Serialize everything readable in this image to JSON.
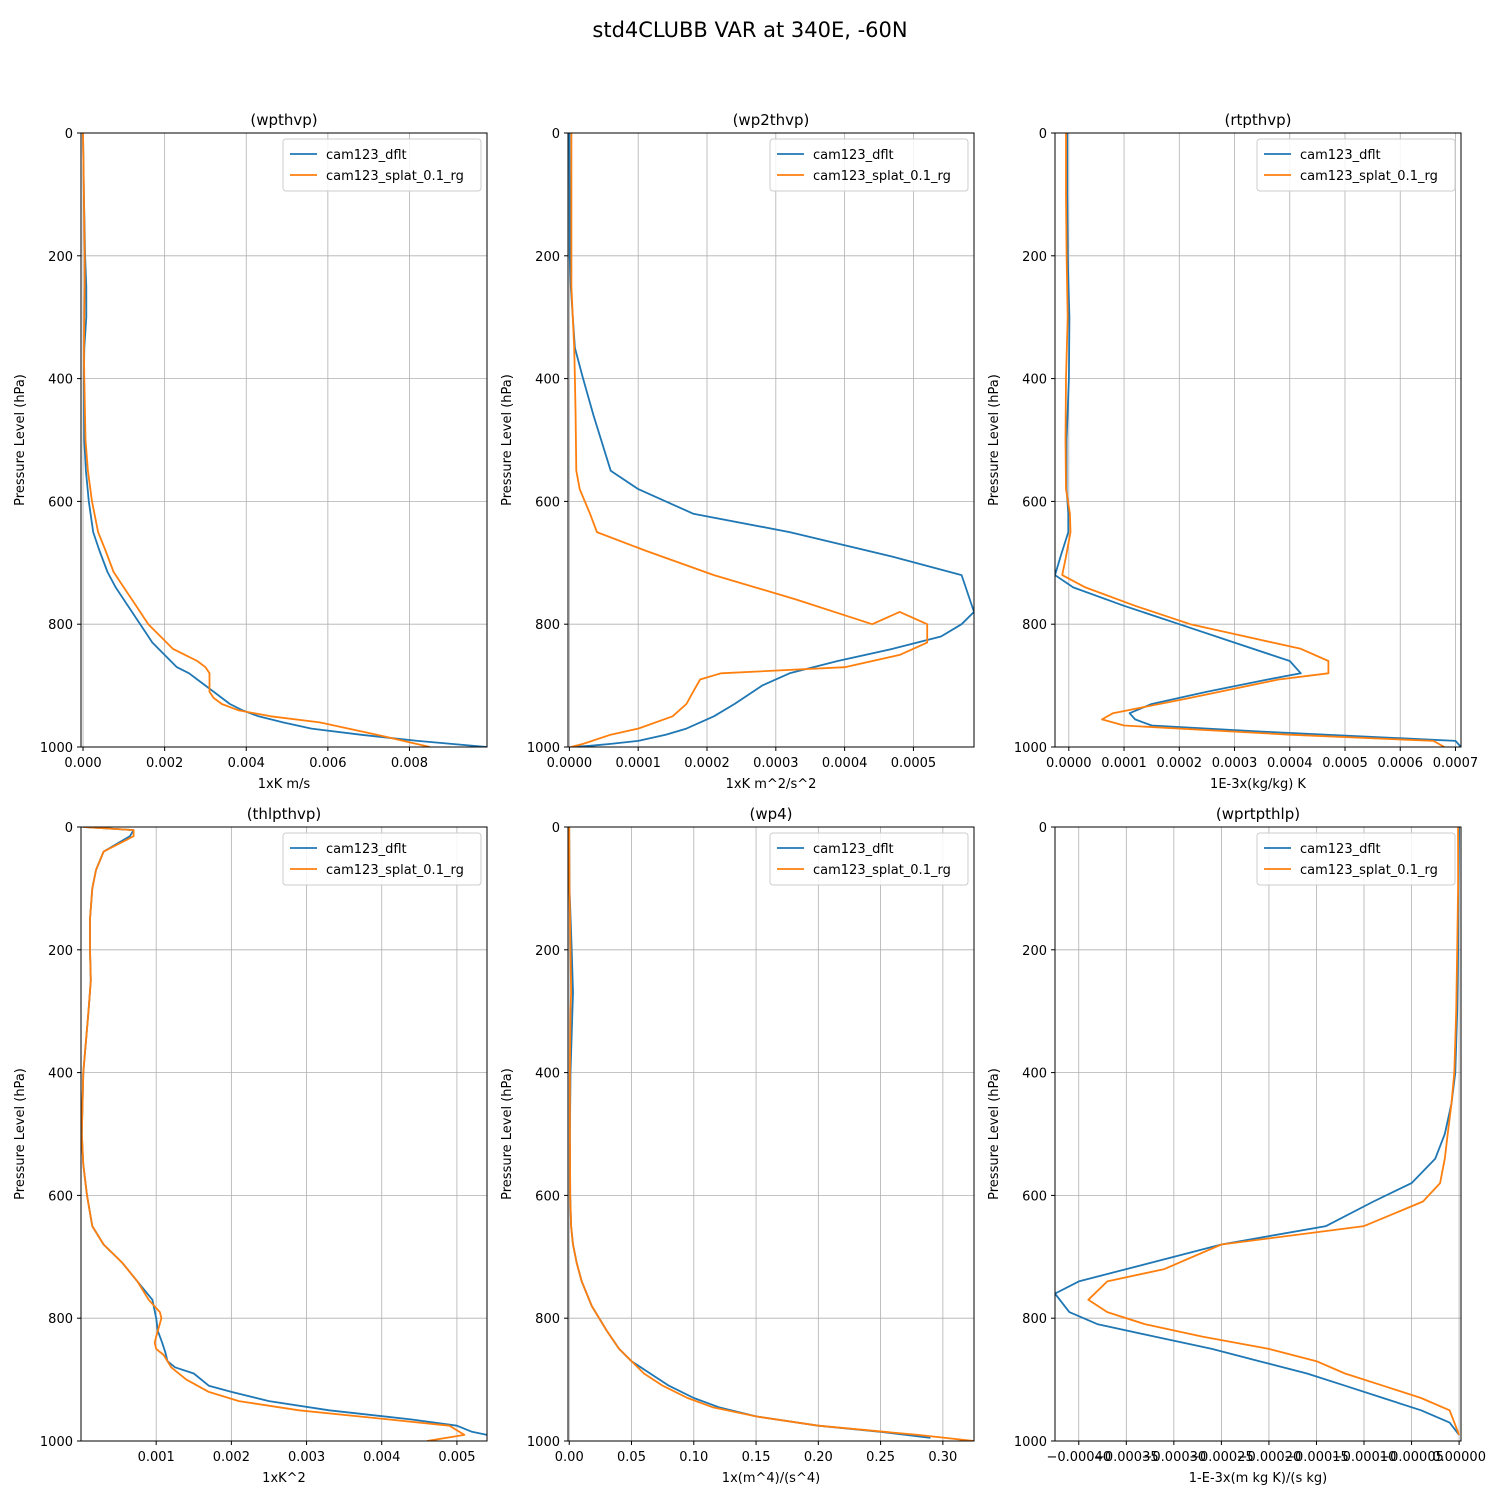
{
  "figure_title": "std4CLUBB VAR at 340E, -60N",
  "colors": {
    "dflt": "#1f77b4",
    "splat": "#ff7f0e",
    "grid": "#b0b0b0",
    "axis": "#000000"
  },
  "legend": [
    "cam123_dflt",
    "cam123_splat_0.1_rg"
  ],
  "chart_data": [
    {
      "type": "line",
      "title": "(wpthvp)",
      "xlabel": "1xK m/s",
      "ylabel": "Pressure Level (hPa)",
      "xlim": [
        -5e-05,
        0.0099
      ],
      "ylim": [
        1000,
        0
      ],
      "xticks": [
        0,
        0.002,
        0.004,
        0.006,
        0.008
      ],
      "xtick_labels": [
        "0.000",
        "0.002",
        "0.004",
        "0.006",
        "0.008"
      ],
      "yticks": [
        0,
        200,
        400,
        600,
        800,
        1000
      ],
      "ytick_labels": [
        "0",
        "200",
        "400",
        "600",
        "800",
        "1000"
      ],
      "legend_loc": "upper right",
      "series": [
        {
          "name": "cam123_dflt",
          "x": [
            0,
            2e-05,
            5e-05,
            8e-05,
            8e-05,
            3e-05,
            2e-05,
            3e-05,
            7e-05,
            0.00014,
            0.00025,
            0.0004,
            0.0006,
            0.0008,
            0.0011,
            0.0014,
            0.0017,
            0.002,
            0.0023,
            0.0026,
            0.0028,
            0.003,
            0.0032,
            0.0034,
            0.0036,
            0.0039,
            0.0043,
            0.0049,
            0.0056,
            0.0068,
            0.0082,
            0.0099
          ],
          "y": [
            0,
            100,
            200,
            250,
            300,
            350,
            400,
            500,
            550,
            600,
            650,
            680,
            715,
            740,
            770,
            800,
            830,
            850,
            870,
            880,
            890,
            900,
            910,
            920,
            930,
            940,
            950,
            960,
            970,
            980,
            990,
            1000
          ]
        },
        {
          "name": "cam123_splat_0.1_rg",
          "x": [
            0,
            2e-05,
            4e-05,
            4e-05,
            3e-05,
            2e-05,
            3e-05,
            6e-05,
            0.00012,
            0.00022,
            0.00037,
            0.00055,
            0.00075,
            0.001,
            0.0013,
            0.0016,
            0.0019,
            0.0022,
            0.0025,
            0.0028,
            0.003,
            0.0031,
            0.0031,
            0.0031,
            0.0031,
            0.0032,
            0.0034,
            0.0038,
            0.0046,
            0.0058,
            0.0072,
            0.0085
          ],
          "y": [
            0,
            100,
            200,
            250,
            300,
            350,
            400,
            500,
            550,
            600,
            650,
            680,
            715,
            740,
            770,
            800,
            820,
            840,
            850,
            860,
            870,
            880,
            890,
            900,
            910,
            920,
            930,
            940,
            950,
            960,
            980,
            1000
          ]
        }
      ]
    },
    {
      "type": "line",
      "title": "(wp2thvp)",
      "xlabel": "1xK m^2/s^2",
      "ylabel": "Pressure Level (hPa)",
      "xlim": [
        -2e-06,
        0.000588
      ],
      "ylim": [
        1000,
        0
      ],
      "xticks": [
        0,
        0.0001,
        0.0002,
        0.0003,
        0.0004,
        0.0005
      ],
      "xtick_labels": [
        "0.0000",
        "0.0001",
        "0.0002",
        "0.0003",
        "0.0004",
        "0.0005"
      ],
      "yticks": [
        0,
        200,
        400,
        600,
        800,
        1000
      ],
      "ytick_labels": [
        "0",
        "200",
        "400",
        "600",
        "800",
        "1000"
      ],
      "legend_loc": "upper right",
      "series": [
        {
          "name": "cam123_dflt",
          "x": [
            0,
            3e-07,
            5e-07,
            2e-06,
            5e-06,
            8e-06,
            2e-05,
            3.5e-05,
            6e-05,
            0.0001,
            0.00018,
            0.00032,
            0.00047,
            0.00057,
            0.000588,
            0.00057,
            0.00054,
            0.00047,
            0.00039,
            0.00032,
            0.00028,
            0.00024,
            0.00021,
            0.00017,
            0.00014,
            0.0001,
            6e-05,
            3e-05,
            5e-06
          ],
          "y": [
            0,
            100,
            200,
            250,
            300,
            350,
            400,
            460,
            550,
            580,
            620,
            650,
            690,
            720,
            780,
            800,
            820,
            840,
            860,
            880,
            900,
            930,
            950,
            970,
            980,
            990,
            995,
            998,
            1000
          ]
        },
        {
          "name": "cam123_splat_0.1_rg",
          "x": [
            3e-06,
            3e-06,
            3e-06,
            3e-06,
            5e-06,
            7e-06,
            8e-06,
            9e-06,
            1e-05,
            1.5e-05,
            3e-05,
            4e-05,
            0.00011,
            0.00021,
            0.00033,
            0.00044,
            0.00048,
            0.00052,
            0.00052,
            0.00048,
            0.0004,
            0.00022,
            0.00019,
            0.00018,
            0.00017,
            0.00015,
            0.0001,
            6e-05,
            2e-05,
            2e-06
          ],
          "y": [
            0,
            100,
            200,
            250,
            300,
            350,
            400,
            460,
            550,
            580,
            620,
            650,
            680,
            720,
            760,
            800,
            780,
            800,
            830,
            850,
            870,
            880,
            890,
            910,
            930,
            950,
            970,
            980,
            995,
            1000
          ]
        }
      ]
    },
    {
      "type": "line",
      "title": "(rtpthvp)",
      "xlabel": "1E-3x(kg/kg) K",
      "ylabel": "Pressure Level (hPa)",
      "xlim": [
        -2.5e-05,
        0.00071
      ],
      "ylim": [
        1000,
        0
      ],
      "xticks": [
        0,
        0.0001,
        0.0002,
        0.0003,
        0.0004,
        0.0005,
        0.0006,
        0.0007
      ],
      "xtick_labels": [
        "0.0000",
        "0.0001",
        "0.0002",
        "0.0003",
        "0.0004",
        "0.0005",
        "0.0006",
        "0.0007"
      ],
      "yticks": [
        0,
        200,
        400,
        600,
        800,
        1000
      ],
      "ytick_labels": [
        "0",
        "200",
        "400",
        "600",
        "800",
        "1000"
      ],
      "legend_loc": "upper right",
      "series": [
        {
          "name": "cam123_dflt",
          "x": [
            -3e-06,
            -3e-06,
            -2e-06,
            1e-06,
            1e-07,
            -4e-06,
            -4e-06,
            -1e-06,
            -1e-06,
            -1.5e-05,
            -2.5e-05,
            8e-06,
            0.0001,
            0.0002,
            0.0003,
            0.0004,
            0.00042,
            0.00036,
            0.00025,
            0.00015,
            0.00011,
            0.00012,
            0.00015,
            0.00035,
            0.0007,
            0.00071
          ],
          "y": [
            0,
            100,
            200,
            300,
            400,
            500,
            580,
            620,
            650,
            690,
            720,
            740,
            770,
            800,
            830,
            860,
            880,
            890,
            910,
            930,
            945,
            955,
            965,
            975,
            990,
            1000
          ]
        },
        {
          "name": "cam123_splat_0.1_rg",
          "x": [
            -5e-06,
            -5e-06,
            -4e-06,
            -2e-06,
            -5e-06,
            -6e-06,
            -5e-06,
            2e-06,
            3e-06,
            -5e-06,
            -1.2e-05,
            3e-05,
            0.00012,
            0.00022,
            0.00042,
            0.00047,
            0.00047,
            0.00038,
            0.00022,
            8e-05,
            6e-05,
            0.0001,
            0.0004,
            0.00066,
            0.00068
          ],
          "y": [
            0,
            100,
            200,
            300,
            400,
            500,
            580,
            620,
            650,
            690,
            720,
            740,
            770,
            800,
            840,
            860,
            880,
            890,
            920,
            945,
            955,
            965,
            980,
            990,
            1000
          ]
        }
      ]
    },
    {
      "type": "line",
      "title": "(thlpthvp)",
      "xlabel": "1xK^2",
      "ylabel": "Pressure Level (hPa)",
      "xlim": [
        0.0,
        0.0054
      ],
      "ylim": [
        1000,
        0
      ],
      "xticks": [
        0.001,
        0.002,
        0.003,
        0.004,
        0.005
      ],
      "xtick_labels": [
        "0.001",
        "0.002",
        "0.003",
        "0.004",
        "0.005"
      ],
      "yticks": [
        0,
        200,
        400,
        600,
        800,
        1000
      ],
      "ytick_labels": [
        "0",
        "200",
        "400",
        "600",
        "800",
        "1000"
      ],
      "legend_loc": "upper right",
      "series": [
        {
          "name": "cam123_dflt",
          "x": [
            3e-05,
            0.0007,
            0.00065,
            0.0003,
            0.0002,
            0.00015,
            0.00012,
            0.00012,
            0.00013,
            0.0001,
            3e-05,
            1e-05,
            3e-05,
            8e-05,
            0.00015,
            0.0003,
            0.00055,
            0.00075,
            0.00095,
            0.001,
            0.00102,
            0.00108,
            0.00112,
            0.00115,
            0.00125,
            0.0015,
            0.0017,
            0.002,
            0.0025,
            0.0033,
            0.0044,
            0.005,
            0.0052,
            0.0054
          ],
          "y": [
            0,
            5,
            15,
            40,
            70,
            100,
            150,
            200,
            250,
            300,
            400,
            500,
            550,
            600,
            650,
            680,
            710,
            740,
            770,
            800,
            820,
            840,
            855,
            870,
            880,
            890,
            910,
            920,
            935,
            950,
            965,
            975,
            985,
            990
          ]
        },
        {
          "name": "cam123_splat_0.1_rg",
          "x": [
            3e-05,
            0.0007,
            0.0007,
            0.0003,
            0.0002,
            0.00015,
            0.00012,
            0.00012,
            0.00013,
            0.0001,
            3e-05,
            1e-05,
            3e-05,
            8e-05,
            0.00015,
            0.0003,
            0.00055,
            0.00075,
            0.0009,
            0.00105,
            0.00107,
            0.001,
            0.00098,
            0.001,
            0.0011,
            0.0012,
            0.0014,
            0.0017,
            0.0021,
            0.0029,
            0.0041,
            0.0049,
            0.0051,
            0.0046
          ],
          "y": [
            0,
            5,
            15,
            40,
            70,
            100,
            150,
            200,
            250,
            300,
            400,
            500,
            550,
            600,
            650,
            680,
            710,
            740,
            770,
            790,
            800,
            830,
            840,
            850,
            860,
            880,
            900,
            920,
            935,
            950,
            965,
            975,
            990,
            1000
          ]
        }
      ]
    },
    {
      "type": "line",
      "title": "(wp4)",
      "xlabel": "1x(m^4)/(s^4)",
      "ylabel": "Pressure Level (hPa)",
      "xlim": [
        -0.001,
        0.325
      ],
      "ylim": [
        1000,
        0
      ],
      "xticks": [
        0,
        0.05,
        0.1,
        0.15,
        0.2,
        0.25,
        0.3
      ],
      "xtick_labels": [
        "0.00",
        "0.05",
        "0.10",
        "0.15",
        "0.20",
        "0.25",
        "0.30"
      ],
      "yticks": [
        0,
        200,
        400,
        600,
        800,
        1000
      ],
      "ytick_labels": [
        "0",
        "200",
        "400",
        "600",
        "800",
        "1000"
      ],
      "legend_loc": "upper right",
      "series": [
        {
          "name": "cam123_dflt",
          "x": [
            0,
            0.0002,
            0.002,
            0.003,
            0.0025,
            0.001,
            0.0005,
            0.0008,
            0.0015,
            0.003,
            0.006,
            0.01,
            0.018,
            0.03,
            0.04,
            0.05,
            0.065,
            0.08,
            0.1,
            0.12,
            0.15,
            0.2,
            0.25,
            0.29
          ],
          "y": [
            0,
            100,
            200,
            270,
            300,
            400,
            500,
            600,
            650,
            680,
            710,
            740,
            780,
            820,
            850,
            870,
            890,
            910,
            930,
            945,
            960,
            975,
            985,
            995
          ]
        },
        {
          "name": "cam123_splat_0.1_rg",
          "x": [
            0,
            0.0002,
            0.001,
            0.0015,
            0.001,
            0.0005,
            0.0005,
            0.0008,
            0.0015,
            0.003,
            0.006,
            0.01,
            0.018,
            0.03,
            0.04,
            0.05,
            0.06,
            0.075,
            0.095,
            0.115,
            0.15,
            0.2,
            0.28,
            0.325
          ],
          "y": [
            0,
            100,
            200,
            270,
            300,
            400,
            500,
            600,
            650,
            680,
            710,
            740,
            780,
            820,
            850,
            870,
            890,
            910,
            930,
            945,
            960,
            975,
            990,
            1000
          ]
        }
      ]
    },
    {
      "type": "line",
      "title": "(wprtpthlp)",
      "xlabel": "1-E-3x(m kg K)/(s kg)",
      "ylabel": "Pressure Level (hPa)",
      "xlim": [
        -0.000425,
        2e-06
      ],
      "ylim": [
        1000,
        0
      ],
      "xticks": [
        -0.0004,
        -0.00035,
        -0.0003,
        -0.00025,
        -0.0002,
        -0.00015,
        -0.0001,
        -5e-05,
        0
      ],
      "xtick_labels": [
        "−0.00040",
        "−0.00035",
        "−0.00030",
        "−0.00025",
        "−0.00020",
        "−0.00015",
        "−0.00010",
        "−0.00005",
        "0.00000"
      ],
      "yticks": [
        0,
        200,
        400,
        600,
        800,
        1000
      ],
      "ytick_labels": [
        "0",
        "200",
        "400",
        "600",
        "800",
        "1000"
      ],
      "legend_loc": "upper right",
      "series": [
        {
          "name": "cam123_dflt",
          "x": [
            0,
            -5e-07,
            -1e-06,
            -2e-06,
            -4e-06,
            -8e-06,
            -1.5e-05,
            -2.5e-05,
            -5e-05,
            -9e-05,
            -0.00014,
            -0.00025,
            -0.00035,
            -0.0004,
            -0.000425,
            -0.00041,
            -0.00038,
            -0.00032,
            -0.00026,
            -0.00021,
            -0.00016,
            -0.00012,
            -8e-05,
            -4e-05,
            -1e-05,
            0
          ],
          "y": [
            0,
            100,
            200,
            300,
            400,
            450,
            500,
            540,
            580,
            610,
            650,
            680,
            720,
            740,
            760,
            790,
            810,
            830,
            850,
            870,
            890,
            910,
            930,
            950,
            970,
            990
          ]
        },
        {
          "name": "cam123_splat_0.1_rg",
          "x": [
            -1e-06,
            -1e-06,
            -2e-06,
            -3e-06,
            -5e-06,
            -8e-06,
            -1.2e-05,
            -1.5e-05,
            -2e-05,
            -3.8e-05,
            -0.0001,
            -0.00025,
            -0.00031,
            -0.00037,
            -0.00039,
            -0.00037,
            -0.00033,
            -0.00027,
            -0.0002,
            -0.00015,
            -0.00012,
            -8e-05,
            -4e-05,
            -1e-05,
            0
          ],
          "y": [
            0,
            100,
            200,
            300,
            400,
            450,
            500,
            540,
            580,
            610,
            650,
            680,
            720,
            740,
            770,
            790,
            810,
            830,
            850,
            870,
            890,
            910,
            930,
            950,
            990
          ]
        }
      ]
    }
  ]
}
